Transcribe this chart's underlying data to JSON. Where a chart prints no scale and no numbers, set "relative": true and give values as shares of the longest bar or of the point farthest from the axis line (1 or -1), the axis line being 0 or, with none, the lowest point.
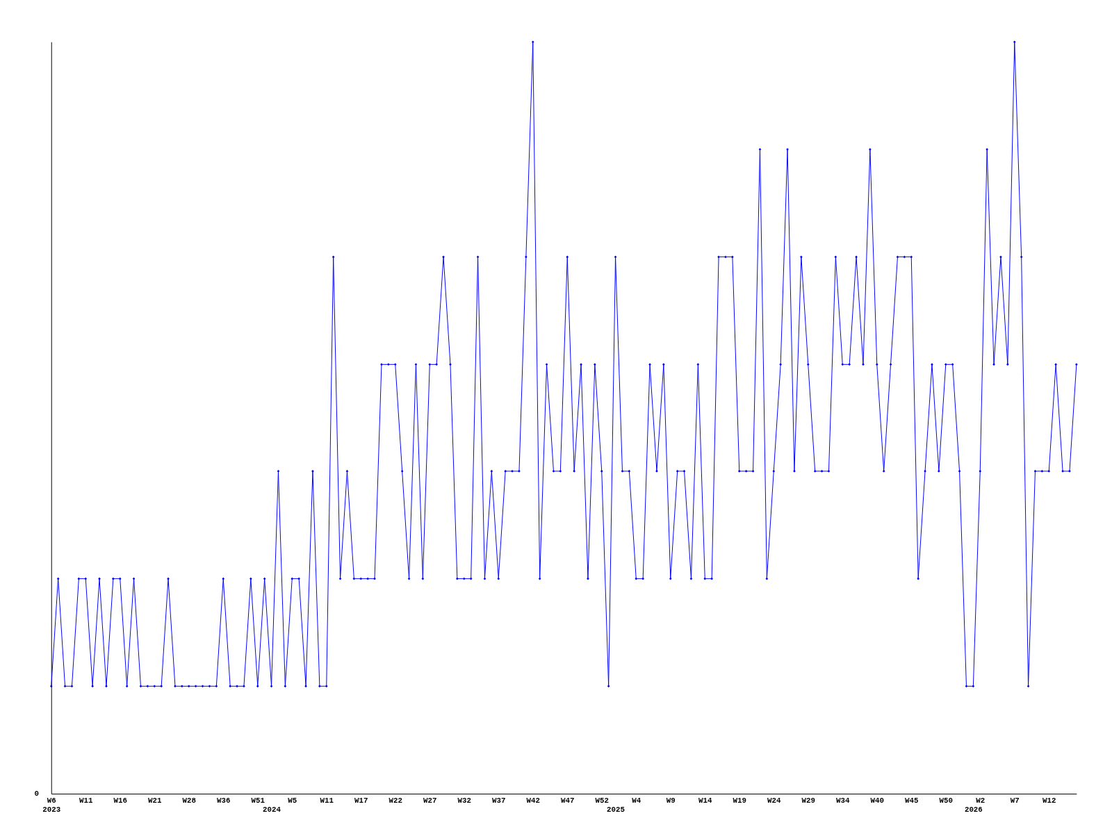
{
  "chart_data": {
    "type": "line",
    "relative": true,
    "marker": "diamond",
    "line_style": "solid",
    "grid": false,
    "categories": [
      "W6\n2023",
      null,
      null,
      null,
      null,
      "W11",
      null,
      null,
      null,
      null,
      "W16",
      null,
      null,
      null,
      null,
      "W21",
      null,
      null,
      null,
      null,
      "W28",
      null,
      null,
      null,
      null,
      "W36",
      null,
      null,
      null,
      null,
      "W51",
      null,
      "\n2024",
      null,
      null,
      "W5",
      null,
      null,
      null,
      null,
      "W11",
      null,
      null,
      null,
      null,
      "W17",
      null,
      null,
      null,
      null,
      "W22",
      null,
      null,
      null,
      null,
      "W27",
      null,
      null,
      null,
      null,
      "W32",
      null,
      null,
      null,
      null,
      "W37",
      null,
      null,
      null,
      null,
      "W42",
      null,
      null,
      null,
      null,
      "W47",
      null,
      null,
      null,
      null,
      "W52",
      null,
      "\n2025",
      null,
      null,
      "W4",
      null,
      null,
      null,
      null,
      "W9",
      null,
      null,
      null,
      null,
      "W14",
      null,
      null,
      null,
      null,
      "W19",
      null,
      null,
      null,
      null,
      "W24",
      null,
      null,
      null,
      null,
      "W29",
      null,
      null,
      null,
      null,
      "W34",
      null,
      null,
      null,
      null,
      "W40",
      null,
      null,
      null,
      null,
      "W45",
      null,
      null,
      null,
      null,
      "W50",
      null,
      null,
      null,
      "\n2026",
      "W2",
      null,
      null,
      null,
      null,
      "W7",
      null,
      null,
      null,
      null,
      "W12",
      null,
      null,
      null,
      null
    ],
    "series": [
      {
        "color": "#0000ff",
        "values": [
          0.143,
          0.286,
          0.143,
          0.143,
          0.286,
          0.286,
          0.143,
          0.286,
          0.143,
          0.286,
          0.286,
          0.143,
          0.286,
          0.143,
          0.143,
          0.143,
          0.143,
          0.286,
          0.143,
          0.143,
          0.143,
          0.143,
          0.143,
          0.143,
          0.143,
          0.286,
          0.143,
          0.143,
          0.143,
          0.286,
          0.143,
          0.286,
          0.143,
          0.429,
          0.143,
          0.286,
          0.286,
          0.143,
          0.429,
          0.143,
          0.143,
          0.714,
          0.286,
          0.429,
          0.286,
          0.286,
          0.286,
          0.286,
          0.571,
          0.571,
          0.571,
          0.429,
          0.286,
          0.571,
          0.286,
          0.571,
          0.571,
          0.714,
          0.571,
          0.286,
          0.286,
          0.286,
          0.714,
          0.286,
          0.429,
          0.286,
          0.429,
          0.429,
          0.429,
          0.714,
          1,
          0.286,
          0.571,
          0.429,
          0.429,
          0.714,
          0.429,
          0.571,
          0.286,
          0.571,
          0.429,
          0.143,
          0.714,
          0.429,
          0.429,
          0.286,
          0.286,
          0.571,
          0.429,
          0.571,
          0.286,
          0.429,
          0.429,
          0.286,
          0.571,
          0.286,
          0.286,
          0.714,
          0.714,
          0.714,
          0.429,
          0.429,
          0.429,
          0.857,
          0.286,
          0.429,
          0.571,
          0.857,
          0.429,
          0.714,
          0.571,
          0.429,
          0.429,
          0.429,
          0.714,
          0.571,
          0.571,
          0.714,
          0.571,
          0.857,
          0.571,
          0.429,
          0.571,
          0.714,
          0.714,
          0.714,
          0.286,
          0.429,
          0.571,
          0.429,
          0.571,
          0.571,
          0.429,
          0.143,
          0.143,
          0.429,
          0.857,
          0.571,
          0.714,
          0.571,
          1,
          0.714,
          0.143,
          0.429,
          0.429,
          0.429,
          0.571,
          0.429,
          0.429,
          0.571
        ]
      }
    ],
    "annotations": [
      "0"
    ]
  }
}
